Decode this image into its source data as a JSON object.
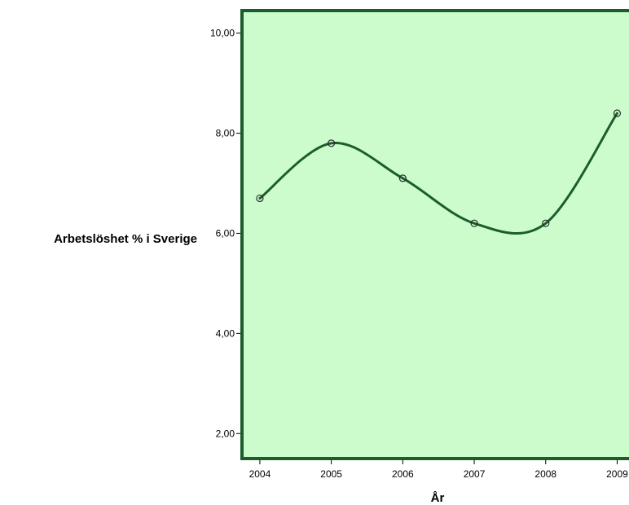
{
  "chart_data": {
    "type": "line",
    "smoothed": true,
    "xlabel": "År",
    "ylabel": "Arbetslöshet % i Sverige",
    "x": [
      2004,
      2005,
      2006,
      2007,
      2008,
      2009
    ],
    "x_tick_labels": [
      "2004",
      "2005",
      "2006",
      "2007",
      "2008",
      "2009"
    ],
    "series": [
      {
        "values": [
          6.7,
          7.8,
          7.1,
          6.2,
          6.2,
          8.4
        ]
      }
    ],
    "y_ticks": [
      2,
      4,
      6,
      8,
      10
    ],
    "y_tick_labels": [
      "2,00",
      "4,00",
      "6,00",
      "8,00",
      "10,00"
    ],
    "ylim": [
      1.5,
      10.45
    ],
    "xlim": [
      2003.75,
      2009.2
    ],
    "grid": false,
    "legend": "none",
    "colors": {
      "plot_background": "#ccfccc",
      "plot_border": "#1b5e2b",
      "line": "#1b5e2b"
    }
  }
}
